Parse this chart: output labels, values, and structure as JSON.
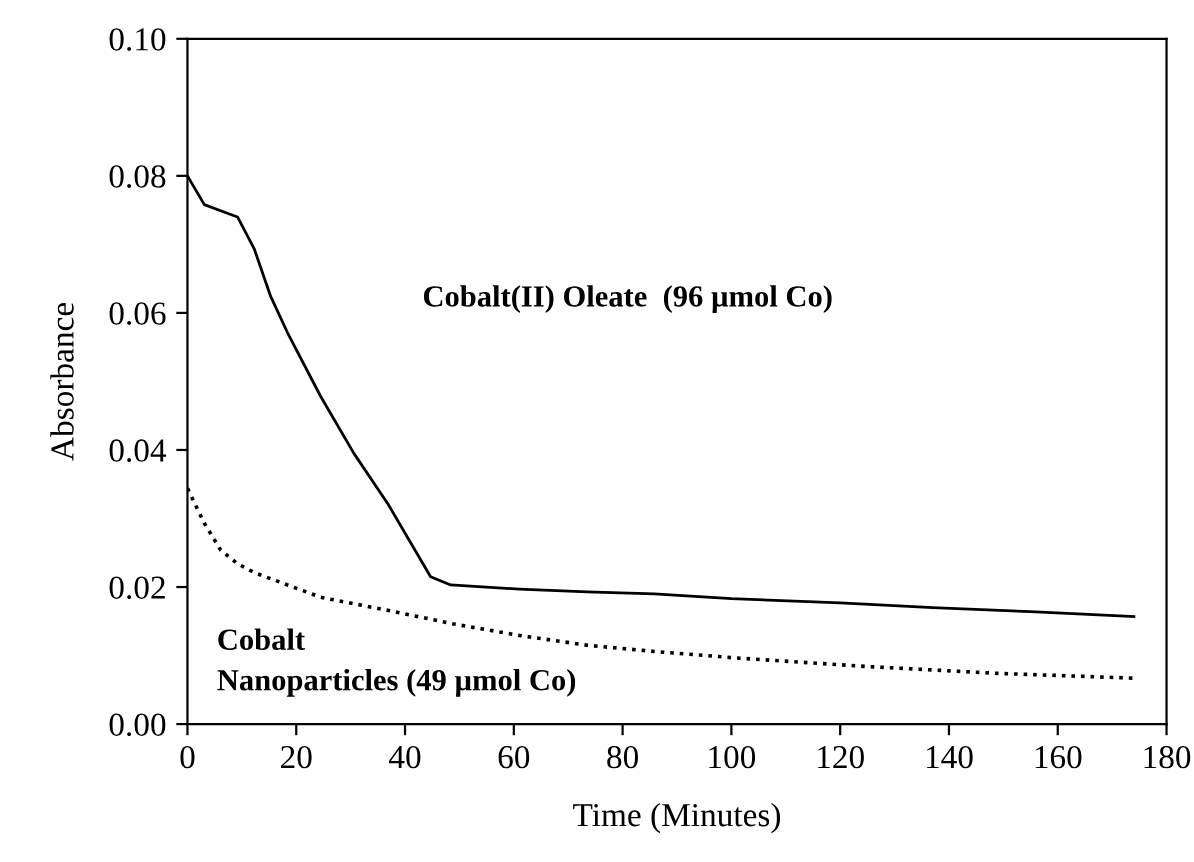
{
  "chart_data": {
    "type": "line",
    "xlabel": "Time (Minutes)",
    "ylabel": "Absorbance",
    "xlim": [
      0,
      180
    ],
    "xticks": [
      0,
      20,
      40,
      60,
      80,
      100,
      120,
      140,
      160,
      180
    ],
    "ylim": [
      0,
      0.1
    ],
    "yticks": [
      {
        "value": 0,
        "label": "0.00"
      },
      {
        "value": 0.02,
        "label": "0.02"
      },
      {
        "value": 0.04,
        "label": "0.04"
      },
      {
        "value": 0.06,
        "label": "0.06"
      },
      {
        "value": 0.08,
        "label": "0.08"
      },
      {
        "value": 0.1,
        "label": "0.10"
      }
    ],
    "grid": false,
    "legend": false,
    "marker": "none",
    "annotations": [
      "Cobalt(II) Oleate  (96 µmol Co)",
      "Cobalt\nNanoparticles (49 µmol Co)"
    ],
    "series": [
      {
        "color": "#000000",
        "line_style": "solid",
        "x": [
          0,
          3.1,
          6.1,
          9.2,
          12.3,
          15.3,
          18.4,
          24.5,
          30.6,
          36.8,
          44.7,
          48.4,
          61,
          73.5,
          85.8,
          100,
          120,
          137,
          155,
          174
        ],
        "values": [
          0.08,
          0.0758,
          0.0749,
          0.074,
          0.0693,
          0.0624,
          0.0571,
          0.0478,
          0.0395,
          0.0322,
          0.0215,
          0.0203,
          0.0197,
          0.0193,
          0.019,
          0.0183,
          0.0177,
          0.017,
          0.0164,
          0.0157
        ]
      },
      {
        "color": "#000000",
        "line_style": "dotted",
        "x": [
          0,
          3.1,
          6.1,
          9.2,
          12.3,
          18.4,
          24.5,
          36.8,
          49,
          61.3,
          73.5,
          85.8,
          100,
          125,
          149,
          174
        ],
        "values": [
          0.0344,
          0.0293,
          0.0254,
          0.0234,
          0.0221,
          0.0203,
          0.0185,
          0.0166,
          0.0146,
          0.0129,
          0.0115,
          0.0106,
          0.0097,
          0.0084,
          0.0074,
          0.0067
        ]
      }
    ]
  }
}
